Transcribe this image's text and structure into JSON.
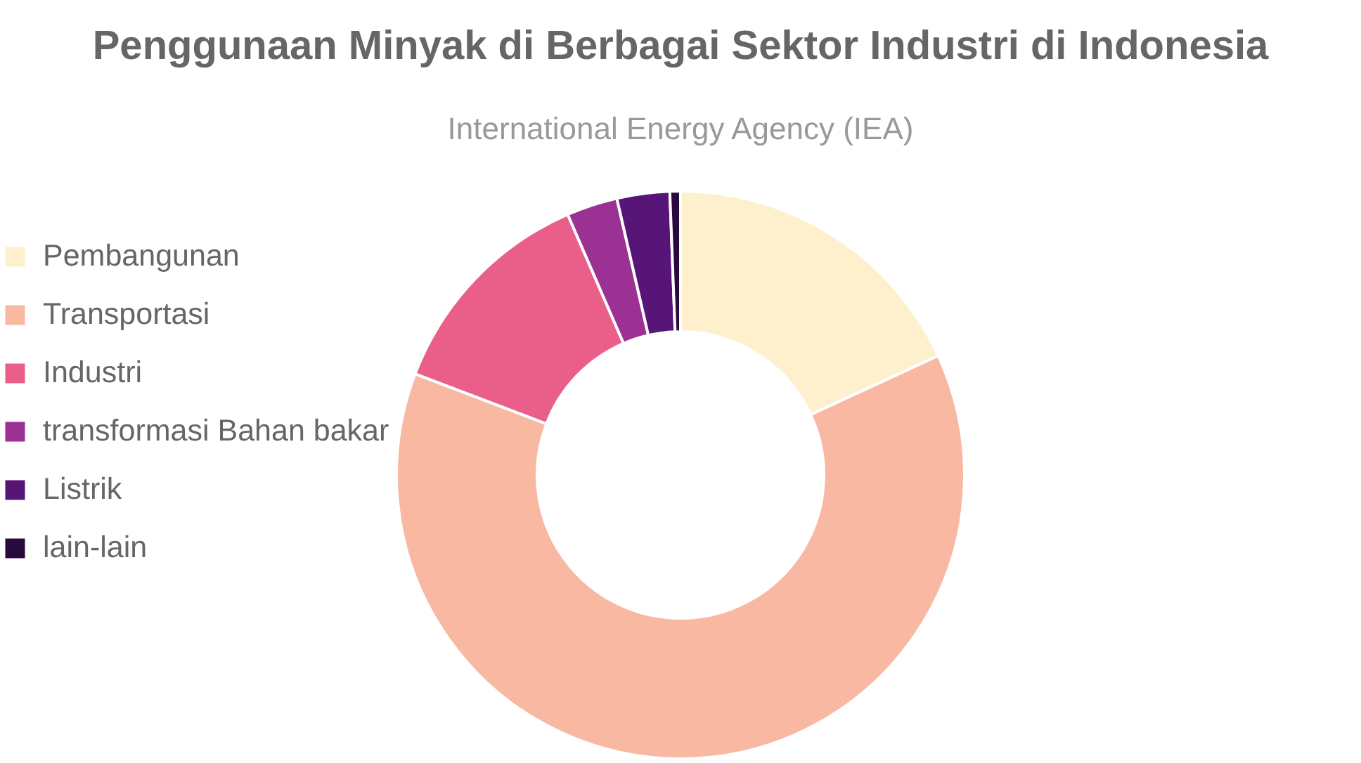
{
  "chart_data": {
    "type": "donut",
    "title": "Penggunaan Minyak di Berbagai Sektor Industri di Indonesia",
    "subtitle": "International Energy Agency (IEA)",
    "categories": [
      "Pembangunan",
      "Transportasi",
      "Industri",
      "transformasi Bahan bakar",
      "Listrik",
      "lain-lain"
    ],
    "values": [
      18.1,
      62.7,
      12.7,
      2.9,
      3.0,
      0.6
    ],
    "colors": [
      "#fef0cc",
      "#f8b8a2",
      "#e95f89",
      "#9b3192",
      "#561577",
      "#2a0a3d"
    ],
    "legend": "left"
  }
}
